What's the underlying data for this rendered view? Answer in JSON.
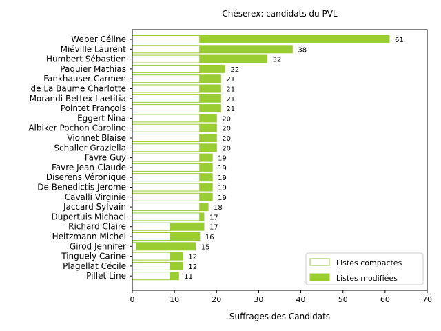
{
  "chart_data": {
    "type": "bar",
    "orientation": "horizontal",
    "stacked": true,
    "title": "Chéserex: candidats du PVL",
    "xlabel": "Suffrages des Candidats",
    "ylabel": "",
    "xlim": [
      0,
      70
    ],
    "xticks": [
      0,
      10,
      20,
      30,
      40,
      50,
      60,
      70
    ],
    "grid": false,
    "legend_position": "bottom-right",
    "colors": {
      "accent": "#9acd32",
      "edge": "#9acd32",
      "hollow_fill": "#ffffff"
    },
    "categories": [
      "Weber Céline",
      "Miéville Laurent",
      "Humbert Sébastien",
      "Paquier Mathias",
      "Fankhauser Carmen",
      "de La Baume Charlotte",
      "Morandi-Bettex Laetitia",
      "Pointet François",
      "Eggert Nina",
      "Albiker Pochon Caroline",
      "Vionnet Blaise",
      "Schaller Graziella",
      "Favre Guy",
      "Favre Jean-Claude",
      "Diserens Véronique",
      "De Benedictis Jerome",
      "Cavalli Virginie",
      "Jaccard Sylvain",
      "Dupertuis Michael",
      "Richard Claire",
      "Heitzmann Michel",
      "Girod Jennifer",
      "Tinguely Carine",
      "Plagellat Cécile",
      "Pillet Line"
    ],
    "series": [
      {
        "name": "Listes compactes",
        "style": "hollow",
        "values": [
          16,
          16,
          16,
          16,
          16,
          16,
          16,
          16,
          16,
          16,
          16,
          16,
          16,
          16,
          16,
          16,
          16,
          16,
          16,
          9,
          9,
          1,
          9,
          9,
          9
        ]
      },
      {
        "name": "Listes modifiées",
        "style": "filled",
        "values": [
          45,
          22,
          16,
          6,
          5,
          5,
          5,
          5,
          4,
          4,
          4,
          4,
          3,
          3,
          3,
          3,
          3,
          2,
          1,
          8,
          7,
          14,
          3,
          3,
          2
        ]
      }
    ],
    "totals": [
      61,
      38,
      32,
      22,
      21,
      21,
      21,
      21,
      20,
      20,
      20,
      20,
      19,
      19,
      19,
      19,
      19,
      18,
      17,
      17,
      16,
      15,
      12,
      12,
      11
    ]
  }
}
